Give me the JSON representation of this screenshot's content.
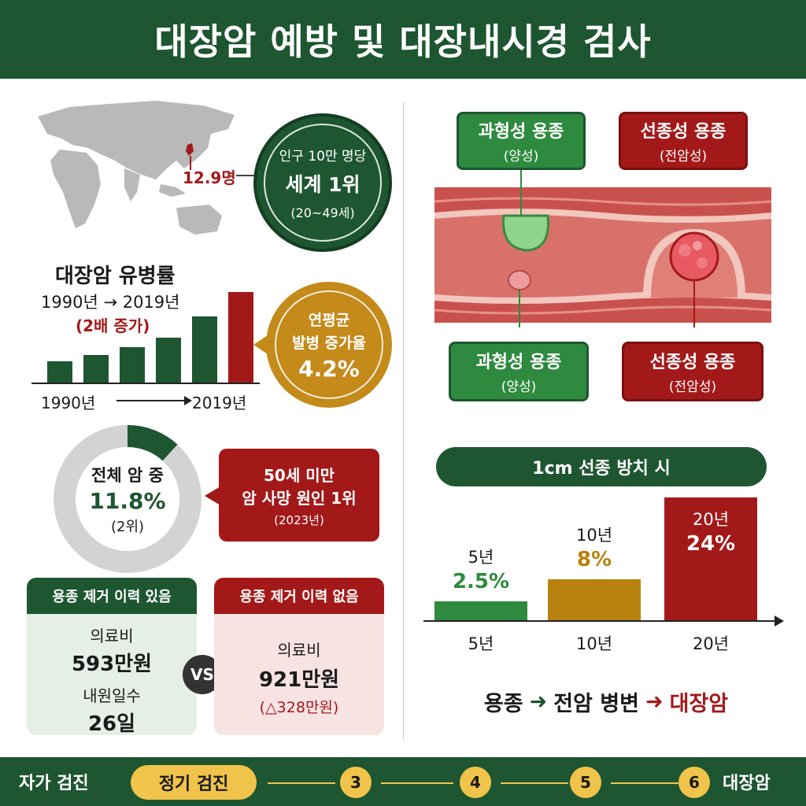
{
  "title": "대장암 예방 및 대장내시경 검사",
  "world": {
    "stat_value": "12.9명",
    "circle_line1": "인구 10만 명당",
    "circle_line2": "세계 1위",
    "circle_line3": "(20~49세)"
  },
  "prevalence": {
    "title": "대장암 유병률",
    "period": "1990년 → 2019년",
    "increase": "(2배 증가)",
    "axis_start": "1990년",
    "axis_end": "2019년",
    "bar_levels": [
      0.22,
      0.28,
      0.36,
      0.46,
      0.68,
      0.93
    ],
    "gold_line1": "연평균",
    "gold_line2": "발병 증가율",
    "gold_line3": "4.2%"
  },
  "share": {
    "line1": "전체 암 중",
    "value": "11.8%",
    "rank": "(2위)",
    "fraction": 0.118,
    "callout_line1": "50세 미만",
    "callout_line2": "암 사망 원인 1위",
    "callout_line3": "(2023년)"
  },
  "cost_compare": {
    "with_history": {
      "header": "용종 제거 이력 있음",
      "cost_label": "의료비",
      "cost_value": "593만원",
      "days_label": "내원일수",
      "days_value": "26일"
    },
    "vs": "VS",
    "without_history": {
      "header": "용종 제거 이력 없음",
      "cost_label": "의료비",
      "cost_value": "921만원",
      "diff": "(△328만원)"
    }
  },
  "polyps": {
    "hyper_top_title": "과형성 용종",
    "hyper_top_sub": "(양성)",
    "adeno_top_title": "선종성 용종",
    "adeno_top_sub": "(전암성)",
    "hyper_bottom_title": "과형성 용종",
    "hyper_bottom_sub": "(양성)",
    "adeno_bottom_title": "선종성 용종",
    "adeno_bottom_sub": "(전암성)"
  },
  "chart_data": {
    "type": "bar",
    "title": "1cm 선종 방치 시",
    "categories": [
      "5년",
      "10년",
      "20년"
    ],
    "values": [
      2.5,
      8,
      24
    ],
    "value_labels": [
      "2.5%",
      "8%",
      "24%"
    ],
    "colors": [
      "#2e8a3e",
      "#b8820f",
      "#a31919"
    ]
  },
  "flow": {
    "step1": "용종",
    "step2": "전암 병변",
    "step3": "대장암"
  },
  "footer": {
    "item1": "자가 검진",
    "item2": "정기 검진",
    "n3": "3",
    "n4": "4",
    "n5": "5",
    "n6": "6",
    "item_last": "대장암"
  },
  "colors": {
    "green": "#1e5631",
    "red": "#a31919",
    "gold": "#c48a1a"
  }
}
